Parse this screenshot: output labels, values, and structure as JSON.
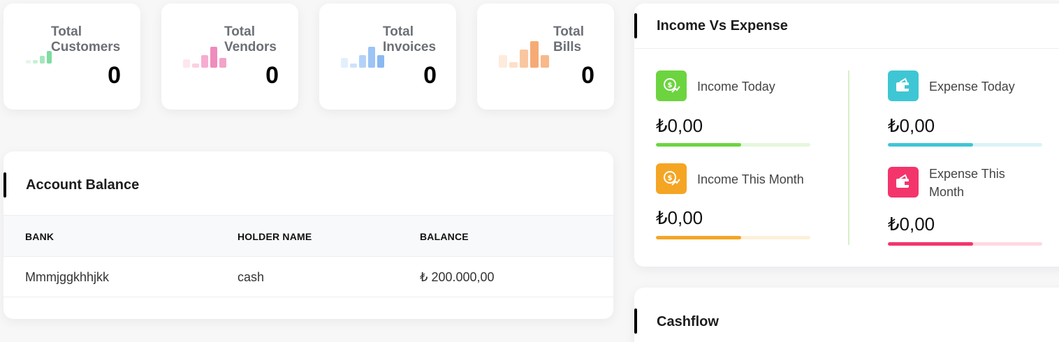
{
  "stats": [
    {
      "label": "Total Customers",
      "value": "0",
      "color_light": "#c8f0d4",
      "color_dark": "#5fd38a"
    },
    {
      "label": "Total Vendors",
      "value": "0",
      "color_light": "#fbd0e4",
      "color_dark": "#f08bbd"
    },
    {
      "label": "Total Invoices",
      "value": "0",
      "color_light": "#cfe2fb",
      "color_dark": "#8ab8f2"
    },
    {
      "label": "Total Bills",
      "value": "0",
      "color_light": "#fde0c8",
      "color_dark": "#f6aa75"
    }
  ],
  "account_balance": {
    "title": "Account Balance",
    "columns": [
      "BANK",
      "HOLDER NAME",
      "BALANCE"
    ],
    "rows": [
      {
        "bank": "Mmmjggkhhjkk",
        "holder": "cash",
        "balance": "₺ 200.000,00"
      }
    ]
  },
  "income_expense": {
    "title": "Income Vs Expense",
    "income_today": {
      "label": "Income Today",
      "amount": "₺0,00",
      "color": "#6cd43f",
      "track": "#e5f7dc",
      "progress": 0.55
    },
    "expense_today": {
      "label": "Expense Today",
      "amount": "₺0,00",
      "color": "#3fc6d4",
      "track": "#daf3f6",
      "progress": 0.55
    },
    "income_month": {
      "label": "Income This Month",
      "amount": "₺0,00",
      "color": "#f5a524",
      "track": "#fdf0d9",
      "progress": 0.55
    },
    "expense_month": {
      "label": "Expense This Month",
      "amount": "₺0,00",
      "color": "#f3356c",
      "track": "#fdd9e3",
      "progress": 0.55
    }
  },
  "cashflow": {
    "title": "Cashflow"
  }
}
